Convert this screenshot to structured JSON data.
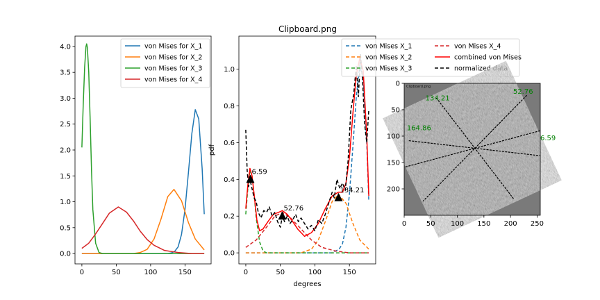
{
  "figure": {
    "title": "Clipboard.png"
  },
  "chart_data": [
    {
      "type": "line",
      "title": "",
      "xlabel": "",
      "ylabel": "",
      "xlim": [
        -10,
        188
      ],
      "ylim": [
        -0.2,
        4.2
      ],
      "xticks": [
        0,
        50,
        100,
        150
      ],
      "yticks": [
        0.0,
        0.5,
        1.0,
        1.5,
        2.0,
        2.5,
        3.0,
        3.5,
        4.0
      ],
      "legend_position": "top-right",
      "series": [
        {
          "name": "von Mises for X_1",
          "color": "#1f77b4",
          "style": "solid",
          "x": [
            0,
            125,
            130,
            135,
            140,
            145,
            150,
            155,
            160,
            165,
            170,
            175,
            178
          ],
          "y": [
            0,
            0.0,
            0.01,
            0.04,
            0.13,
            0.37,
            0.85,
            1.56,
            2.32,
            2.78,
            2.6,
            1.64,
            0.76
          ]
        },
        {
          "name": "von Mises for X_2",
          "color": "#ff7f0e",
          "style": "solid",
          "x": [
            0,
            75,
            85,
            95,
            105,
            115,
            125,
            134,
            145,
            155,
            165,
            178
          ],
          "y": [
            0,
            0.0,
            0.02,
            0.08,
            0.28,
            0.66,
            1.1,
            1.24,
            1.02,
            0.6,
            0.28,
            0.07
          ]
        },
        {
          "name": "von Mises for X_3",
          "color": "#2ca02c",
          "style": "solid",
          "x": [
            0,
            2,
            4,
            6,
            7,
            8,
            10,
            12,
            14,
            16,
            20,
            25,
            30,
            178
          ],
          "y": [
            2.05,
            2.9,
            3.6,
            4.0,
            4.05,
            3.98,
            3.5,
            2.6,
            1.6,
            0.85,
            0.2,
            0.02,
            0.0,
            0.0
          ]
        },
        {
          "name": "von Mises for X_4",
          "color": "#d62728",
          "style": "solid",
          "x": [
            0,
            10,
            20,
            30,
            40,
            53,
            65,
            75,
            85,
            95,
            105,
            120,
            140,
            160,
            178
          ],
          "y": [
            0.1,
            0.2,
            0.38,
            0.58,
            0.78,
            0.9,
            0.8,
            0.63,
            0.43,
            0.27,
            0.16,
            0.06,
            0.02,
            0.0,
            0.0
          ]
        }
      ]
    },
    {
      "type": "line",
      "title": "Clipboard.png",
      "xlabel": "degrees",
      "ylabel": "pdf",
      "xlim": [
        -10,
        188
      ],
      "ylim": [
        -0.06,
        1.18
      ],
      "xticks": [
        0,
        50,
        100,
        150
      ],
      "yticks": [
        0.0,
        0.2,
        0.4,
        0.6,
        0.8,
        1.0
      ],
      "legend_position": "top-right",
      "series": [
        {
          "name": "von Mises X_1",
          "color": "#1f77b4",
          "style": "dashed",
          "x": [
            0,
            125,
            135,
            140,
            145,
            150,
            155,
            160,
            165,
            170,
            175,
            178
          ],
          "y": [
            0,
            0.0,
            0.02,
            0.05,
            0.14,
            0.32,
            0.58,
            0.85,
            1.02,
            0.95,
            0.6,
            0.28
          ]
        },
        {
          "name": "von Mises X_2",
          "color": "#ff7f0e",
          "style": "dashed",
          "x": [
            0,
            80,
            95,
            105,
            115,
            125,
            134,
            145,
            155,
            165,
            178
          ],
          "y": [
            0,
            0.0,
            0.02,
            0.07,
            0.17,
            0.28,
            0.32,
            0.27,
            0.16,
            0.07,
            0.02
          ]
        },
        {
          "name": "von Mises X_3",
          "color": "#2ca02c",
          "style": "dashed",
          "x": [
            0,
            3,
            6,
            9,
            12,
            15,
            20,
            25,
            30,
            178
          ],
          "y": [
            0.21,
            0.35,
            0.45,
            0.42,
            0.32,
            0.19,
            0.06,
            0.01,
            0.0,
            0.0
          ]
        },
        {
          "name": "von Mises X_4",
          "color": "#d62728",
          "style": "dashed",
          "x": [
            0,
            15,
            30,
            42,
            53,
            65,
            80,
            95,
            110,
            130,
            150,
            178
          ],
          "y": [
            0.03,
            0.07,
            0.14,
            0.2,
            0.22,
            0.19,
            0.13,
            0.07,
            0.03,
            0.01,
            0.0,
            0.0
          ]
        },
        {
          "name": "combined von Mises",
          "color": "#ff0000",
          "style": "solid",
          "x": [
            0,
            3,
            6,
            9,
            12,
            16,
            20,
            25,
            32,
            40,
            47,
            53,
            60,
            68,
            75,
            85,
            95,
            105,
            115,
            125,
            134,
            140,
            145,
            150,
            155,
            160,
            165,
            170,
            175,
            178
          ],
          "y": [
            0.24,
            0.37,
            0.46,
            0.42,
            0.32,
            0.18,
            0.12,
            0.13,
            0.17,
            0.21,
            0.22,
            0.23,
            0.21,
            0.17,
            0.13,
            0.09,
            0.11,
            0.16,
            0.24,
            0.31,
            0.33,
            0.33,
            0.38,
            0.52,
            0.76,
            0.97,
            1.06,
            0.99,
            0.64,
            0.31
          ]
        },
        {
          "name": "normalized data",
          "color": "#000000",
          "style": "dashed",
          "x": [
            0,
            2,
            4,
            6,
            9,
            12,
            15,
            18,
            22,
            26,
            30,
            34,
            38,
            42,
            46,
            50,
            53,
            56,
            60,
            64,
            68,
            72,
            76,
            80,
            85,
            90,
            95,
            100,
            105,
            110,
            115,
            120,
            125,
            128,
            132,
            136,
            140,
            144,
            148,
            152,
            156,
            160,
            163,
            166,
            169,
            172,
            175,
            178
          ],
          "y": [
            0.67,
            0.45,
            0.36,
            0.4,
            0.35,
            0.3,
            0.28,
            0.22,
            0.19,
            0.23,
            0.22,
            0.25,
            0.2,
            0.22,
            0.17,
            0.14,
            0.2,
            0.17,
            0.2,
            0.16,
            0.18,
            0.21,
            0.17,
            0.19,
            0.16,
            0.13,
            0.15,
            0.12,
            0.18,
            0.16,
            0.21,
            0.27,
            0.33,
            0.3,
            0.4,
            0.35,
            0.38,
            0.34,
            0.5,
            0.78,
            0.86,
            1.02,
            0.85,
            1.08,
            0.94,
            0.7,
            0.6,
            0.78
          ]
        }
      ],
      "peaks": [
        {
          "x": 6.59,
          "y": 0.4,
          "label": "6.59"
        },
        {
          "x": 52.76,
          "y": 0.2,
          "label": "52.76"
        },
        {
          "x": 134.21,
          "y": 0.3,
          "label": "134.21"
        }
      ]
    },
    {
      "type": "image",
      "title": "",
      "xlim": [
        0,
        256
      ],
      "ylim": [
        250,
        0
      ],
      "xticks": [
        0,
        50,
        100,
        150,
        200,
        250
      ],
      "yticks": [
        0,
        50,
        100,
        150,
        200
      ],
      "caption": "Clipboard.png",
      "annotation_color": "#008000",
      "center": [
        133,
        123
      ],
      "annotations": [
        {
          "label": "52.76",
          "x": 205,
          "y": 20
        },
        {
          "label": "134.21",
          "x": 40,
          "y": 32
        },
        {
          "label": "164.86",
          "x": 5,
          "y": 89
        },
        {
          "label": "6.59",
          "x": 256,
          "y": 108
        }
      ],
      "lines": [
        {
          "angle": 52.76,
          "length": 120
        },
        {
          "angle": 134.21,
          "length": 140
        },
        {
          "angle": 164.86,
          "length": 145
        },
        {
          "angle": 6.59,
          "length": 125
        }
      ]
    }
  ]
}
